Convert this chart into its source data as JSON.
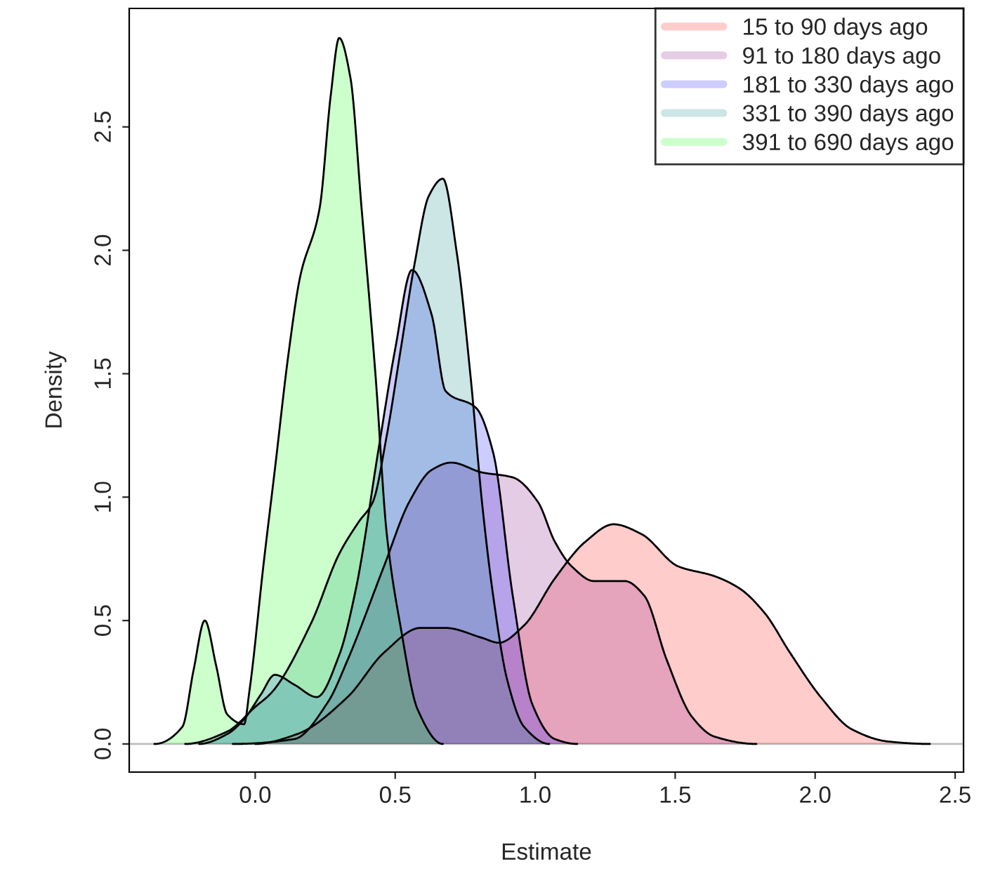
{
  "chart_data": {
    "type": "area",
    "xlabel": "Estimate",
    "ylabel": "Density",
    "xlim": [
      -0.45,
      2.53
    ],
    "ylim": [
      -0.114,
      2.98
    ],
    "xticks": [
      {
        "value": 0,
        "label": "0.0"
      },
      {
        "value": 0.5,
        "label": "0.5"
      },
      {
        "value": 1,
        "label": "1.0"
      },
      {
        "value": 1.5,
        "label": "1.5"
      },
      {
        "value": 2,
        "label": "2.0"
      },
      {
        "value": 2.5,
        "label": "2.5"
      }
    ],
    "yticks": [
      {
        "value": 0,
        "label": "0.0"
      },
      {
        "value": 0.5,
        "label": "0.5"
      },
      {
        "value": 1,
        "label": "1.0"
      },
      {
        "value": 1.5,
        "label": "1.5"
      },
      {
        "value": 2,
        "label": "2.0"
      },
      {
        "value": 2.5,
        "label": "2.5"
      }
    ],
    "grid": false,
    "legend": "top right",
    "ref_lines": [
      {
        "axis": "y",
        "value": 0,
        "color": "#bebebe"
      }
    ],
    "series": [
      {
        "name": "15 to 90 days ago",
        "color": "#ffcccc",
        "x": [
          0.0,
          0.15,
          0.33,
          0.46,
          0.59,
          0.68,
          0.81,
          0.87,
          0.96,
          1.07,
          1.18,
          1.28,
          1.38,
          1.51,
          1.64,
          1.73,
          1.82,
          1.91,
          2.02,
          2.13,
          2.26,
          2.41
        ],
        "values": [
          0,
          0.04,
          0.19,
          0.37,
          0.47,
          0.47,
          0.43,
          0.41,
          0.48,
          0.67,
          0.82,
          0.89,
          0.85,
          0.72,
          0.68,
          0.63,
          0.53,
          0.37,
          0.19,
          0.06,
          0.01,
          0
        ]
      },
      {
        "name": "91 to 180 days ago",
        "color": "#e5cce5",
        "x": [
          -0.08,
          0.14,
          0.26,
          0.33,
          0.46,
          0.55,
          0.63,
          0.7,
          0.81,
          0.92,
          1.01,
          1.07,
          1.13,
          1.21,
          1.32,
          1.39,
          1.47,
          1.56,
          1.64,
          1.79
        ],
        "values": [
          0,
          0.02,
          0.17,
          0.34,
          0.72,
          0.98,
          1.11,
          1.14,
          1.1,
          1.08,
          0.98,
          0.82,
          0.72,
          0.66,
          0.66,
          0.6,
          0.34,
          0.11,
          0.03,
          0
        ]
      },
      {
        "name": "181 to 330 days ago",
        "color": "#ccccff",
        "x": [
          -0.2,
          -0.1,
          -0.04,
          0.02,
          0.07,
          0.14,
          0.22,
          0.3,
          0.36,
          0.44,
          0.5,
          0.56,
          0.63,
          0.68,
          0.79,
          0.85,
          0.92,
          0.99,
          1.07,
          1.15
        ],
        "values": [
          0,
          0.04,
          0.1,
          0.2,
          0.28,
          0.24,
          0.19,
          0.36,
          0.63,
          1.19,
          1.6,
          1.92,
          1.74,
          1.43,
          1.36,
          1.18,
          0.6,
          0.16,
          0.02,
          0
        ]
      },
      {
        "name": "331 to 390 days ago",
        "color": "#cce5e5",
        "x": [
          -0.25,
          -0.1,
          0.0,
          0.06,
          0.2,
          0.3,
          0.37,
          0.42,
          0.47,
          0.52,
          0.57,
          0.62,
          0.67,
          0.72,
          0.77,
          0.81,
          0.85,
          0.9,
          0.96,
          1.05
        ],
        "values": [
          0,
          0.05,
          0.15,
          0.21,
          0.49,
          0.77,
          0.9,
          0.98,
          1.25,
          1.6,
          1.95,
          2.22,
          2.29,
          1.99,
          1.48,
          0.98,
          0.6,
          0.26,
          0.07,
          0
        ]
      },
      {
        "name": "391 to 690 days ago",
        "color": "#ccffcc",
        "x": [
          -0.36,
          -0.26,
          -0.22,
          -0.18,
          -0.14,
          -0.1,
          -0.04,
          -0.02,
          0.03,
          0.07,
          0.12,
          0.16,
          0.23,
          0.27,
          0.3,
          0.34,
          0.38,
          0.43,
          0.47,
          0.52,
          0.58,
          0.67
        ],
        "values": [
          0,
          0.07,
          0.3,
          0.5,
          0.32,
          0.12,
          0.08,
          0.22,
          0.73,
          1.11,
          1.59,
          1.89,
          2.17,
          2.63,
          2.86,
          2.7,
          2.17,
          1.49,
          0.85,
          0.47,
          0.14,
          0
        ]
      }
    ]
  }
}
